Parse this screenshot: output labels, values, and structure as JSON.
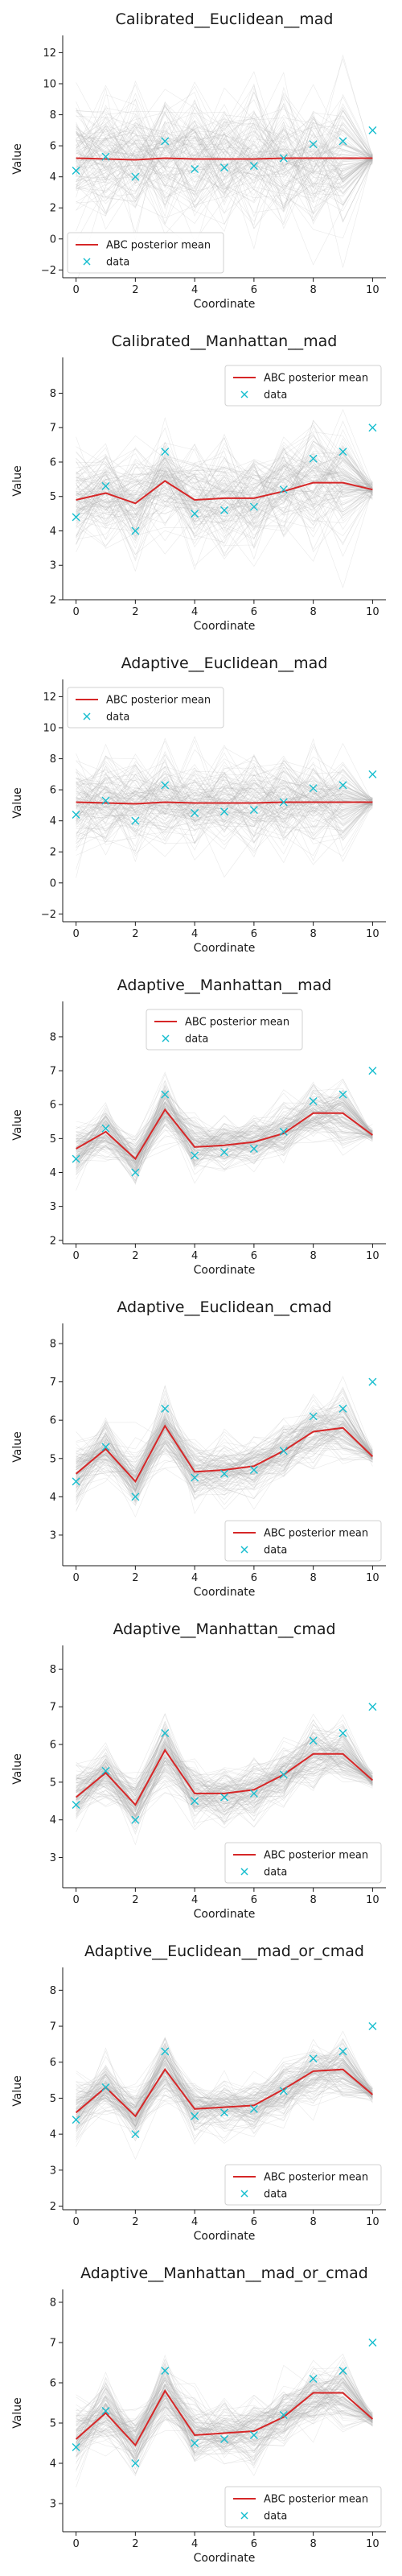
{
  "colors": {
    "mean_line": "#d62728",
    "data_marker": "#17becf",
    "sample_lines": "#b0b0b0"
  },
  "chart_data": [
    {
      "type": "line",
      "title": "Calibrated__Euclidean__mad",
      "xlabel": "Coordinate",
      "ylabel": "Value",
      "x": [
        0,
        1,
        2,
        3,
        4,
        5,
        6,
        7,
        8,
        9,
        10
      ],
      "xticks": [
        0,
        2,
        4,
        6,
        8,
        10
      ],
      "ylim": [
        -2.5,
        12.8
      ],
      "yticks": [
        -2,
        0,
        2,
        4,
        6,
        8,
        10,
        12
      ],
      "legend_position": "bottom-left",
      "sample_spread": [
        4.5,
        4.5,
        4.5,
        4.5,
        4.5,
        4.5,
        4.5,
        4.5,
        4.5,
        4.5,
        0.3
      ],
      "series": [
        {
          "name": "ABC posterior mean",
          "kind": "line",
          "values": [
            5.2,
            5.15,
            5.1,
            5.2,
            5.15,
            5.15,
            5.15,
            5.2,
            5.2,
            5.2,
            5.2
          ]
        },
        {
          "name": "data",
          "kind": "marker",
          "values": [
            4.4,
            5.3,
            4.0,
            6.3,
            4.5,
            4.6,
            4.7,
            5.2,
            6.1,
            6.3,
            7.0
          ]
        }
      ]
    },
    {
      "type": "line",
      "title": "Calibrated__Manhattan__mad",
      "xlabel": "Coordinate",
      "ylabel": "Value",
      "x": [
        0,
        1,
        2,
        3,
        4,
        5,
        6,
        7,
        8,
        9,
        10
      ],
      "xticks": [
        0,
        2,
        4,
        6,
        8,
        10
      ],
      "ylim": [
        2.0,
        8.9
      ],
      "yticks": [
        2,
        3,
        4,
        5,
        6,
        7,
        8
      ],
      "legend_position": "top-right",
      "sample_spread": [
        1.5,
        1.6,
        1.5,
        1.5,
        1.5,
        1.5,
        1.5,
        1.6,
        1.8,
        1.8,
        0.25
      ],
      "series": [
        {
          "name": "ABC posterior mean",
          "kind": "line",
          "values": [
            4.9,
            5.1,
            4.8,
            5.45,
            4.9,
            4.95,
            4.95,
            5.15,
            5.4,
            5.4,
            5.2
          ]
        },
        {
          "name": "data",
          "kind": "marker",
          "values": [
            4.4,
            5.3,
            4.0,
            6.3,
            4.5,
            4.6,
            4.7,
            5.2,
            6.1,
            6.3,
            7.0
          ]
        }
      ]
    },
    {
      "type": "line",
      "title": "Adaptive__Euclidean__mad",
      "xlabel": "Coordinate",
      "ylabel": "Value",
      "x": [
        0,
        1,
        2,
        3,
        4,
        5,
        6,
        7,
        8,
        9,
        10
      ],
      "xticks": [
        0,
        2,
        4,
        6,
        8,
        10
      ],
      "ylim": [
        -2.5,
        12.8
      ],
      "yticks": [
        -2,
        0,
        2,
        4,
        6,
        8,
        10,
        12
      ],
      "legend_position": "top-left",
      "sample_spread": [
        3.2,
        3.2,
        3.2,
        3.2,
        3.2,
        3.2,
        3.2,
        3.2,
        3.2,
        3.2,
        0.3
      ],
      "series": [
        {
          "name": "ABC posterior mean",
          "kind": "line",
          "values": [
            5.2,
            5.15,
            5.1,
            5.2,
            5.15,
            5.15,
            5.15,
            5.2,
            5.2,
            5.2,
            5.2
          ]
        },
        {
          "name": "data",
          "kind": "marker",
          "values": [
            4.4,
            5.3,
            4.0,
            6.3,
            4.5,
            4.6,
            4.7,
            5.2,
            6.1,
            6.3,
            7.0
          ]
        }
      ]
    },
    {
      "type": "line",
      "title": "Adaptive__Manhattan__mad",
      "xlabel": "Coordinate",
      "ylabel": "Value",
      "x": [
        0,
        1,
        2,
        3,
        4,
        5,
        6,
        7,
        8,
        9,
        10
      ],
      "xticks": [
        0,
        2,
        4,
        6,
        8,
        10
      ],
      "ylim": [
        1.9,
        8.9
      ],
      "yticks": [
        2,
        3,
        4,
        5,
        6,
        7,
        8
      ],
      "legend_position": "top-center",
      "sample_spread": [
        0.9,
        0.8,
        0.8,
        0.9,
        0.8,
        0.8,
        0.8,
        0.8,
        0.9,
        0.9,
        0.2
      ],
      "series": [
        {
          "name": "ABC posterior mean",
          "kind": "line",
          "values": [
            4.7,
            5.2,
            4.4,
            5.85,
            4.75,
            4.8,
            4.9,
            5.15,
            5.75,
            5.75,
            5.1
          ]
        },
        {
          "name": "data",
          "kind": "marker",
          "values": [
            4.4,
            5.3,
            4.0,
            6.3,
            4.5,
            4.6,
            4.7,
            5.2,
            6.1,
            6.3,
            7.0
          ]
        }
      ]
    },
    {
      "type": "line",
      "title": "Adaptive__Euclidean__cmad",
      "xlabel": "Coordinate",
      "ylabel": "Value",
      "x": [
        0,
        1,
        2,
        3,
        4,
        5,
        6,
        7,
        8,
        9,
        10
      ],
      "xticks": [
        0,
        2,
        4,
        6,
        8,
        10
      ],
      "ylim": [
        2.2,
        8.4
      ],
      "yticks": [
        3,
        4,
        5,
        6,
        7,
        8
      ],
      "legend_position": "bottom-right",
      "sample_spread": [
        0.9,
        0.8,
        0.8,
        0.9,
        0.8,
        0.8,
        0.8,
        0.8,
        0.9,
        0.9,
        0.2
      ],
      "series": [
        {
          "name": "ABC posterior mean",
          "kind": "line",
          "values": [
            4.6,
            5.25,
            4.4,
            5.85,
            4.65,
            4.7,
            4.8,
            5.2,
            5.7,
            5.8,
            5.05
          ]
        },
        {
          "name": "data",
          "kind": "marker",
          "values": [
            4.4,
            5.3,
            4.0,
            6.3,
            4.5,
            4.6,
            4.7,
            5.2,
            6.1,
            6.3,
            7.0
          ]
        }
      ]
    },
    {
      "type": "line",
      "title": "Adaptive__Manhattan__cmad",
      "xlabel": "Coordinate",
      "ylabel": "Value",
      "x": [
        0,
        1,
        2,
        3,
        4,
        5,
        6,
        7,
        8,
        9,
        10
      ],
      "xticks": [
        0,
        2,
        4,
        6,
        8,
        10
      ],
      "ylim": [
        2.2,
        8.5
      ],
      "yticks": [
        3,
        4,
        5,
        6,
        7,
        8
      ],
      "legend_position": "bottom-right",
      "sample_spread": [
        0.9,
        0.8,
        0.8,
        0.9,
        0.8,
        0.8,
        0.8,
        0.8,
        0.9,
        0.9,
        0.2
      ],
      "series": [
        {
          "name": "ABC posterior mean",
          "kind": "line",
          "values": [
            4.6,
            5.25,
            4.4,
            5.85,
            4.7,
            4.7,
            4.8,
            5.2,
            5.75,
            5.75,
            5.05
          ]
        },
        {
          "name": "data",
          "kind": "marker",
          "values": [
            4.4,
            5.3,
            4.0,
            6.3,
            4.5,
            4.6,
            4.7,
            5.2,
            6.1,
            6.3,
            7.0
          ]
        }
      ]
    },
    {
      "type": "line",
      "title": "Adaptive__Euclidean__mad_or_cmad",
      "xlabel": "Coordinate",
      "ylabel": "Value",
      "x": [
        0,
        1,
        2,
        3,
        4,
        5,
        6,
        7,
        8,
        9,
        10
      ],
      "xticks": [
        0,
        2,
        4,
        6,
        8,
        10
      ],
      "ylim": [
        1.9,
        8.5
      ],
      "yticks": [
        2,
        3,
        4,
        5,
        6,
        7,
        8
      ],
      "legend_position": "bottom-right",
      "sample_spread": [
        0.9,
        0.8,
        0.8,
        0.9,
        0.8,
        0.8,
        0.8,
        0.8,
        0.9,
        0.9,
        0.2
      ],
      "series": [
        {
          "name": "ABC posterior mean",
          "kind": "line",
          "values": [
            4.6,
            5.3,
            4.5,
            5.8,
            4.7,
            4.75,
            4.8,
            5.25,
            5.75,
            5.8,
            5.1
          ]
        },
        {
          "name": "data",
          "kind": "marker",
          "values": [
            4.4,
            5.3,
            4.0,
            6.3,
            4.5,
            4.6,
            4.7,
            5.2,
            6.1,
            6.3,
            7.0
          ]
        }
      ]
    },
    {
      "type": "line",
      "title": "Adaptive__Manhattan__mad_or_cmad",
      "xlabel": "Coordinate",
      "ylabel": "Value",
      "x": [
        0,
        1,
        2,
        3,
        4,
        5,
        6,
        7,
        8,
        9,
        10
      ],
      "xticks": [
        0,
        2,
        4,
        6,
        8,
        10
      ],
      "ylim": [
        2.3,
        8.2
      ],
      "yticks": [
        3,
        4,
        5,
        6,
        7,
        8
      ],
      "legend_position": "bottom-right",
      "sample_spread": [
        0.9,
        0.8,
        0.8,
        0.9,
        0.8,
        0.8,
        0.8,
        0.8,
        0.9,
        0.9,
        0.2
      ],
      "series": [
        {
          "name": "ABC posterior mean",
          "kind": "line",
          "values": [
            4.6,
            5.25,
            4.45,
            5.8,
            4.7,
            4.75,
            4.8,
            5.15,
            5.75,
            5.75,
            5.1
          ]
        },
        {
          "name": "data",
          "kind": "marker",
          "values": [
            4.4,
            5.3,
            4.0,
            6.3,
            4.5,
            4.6,
            4.7,
            5.2,
            6.1,
            6.3,
            7.0
          ]
        }
      ]
    }
  ]
}
